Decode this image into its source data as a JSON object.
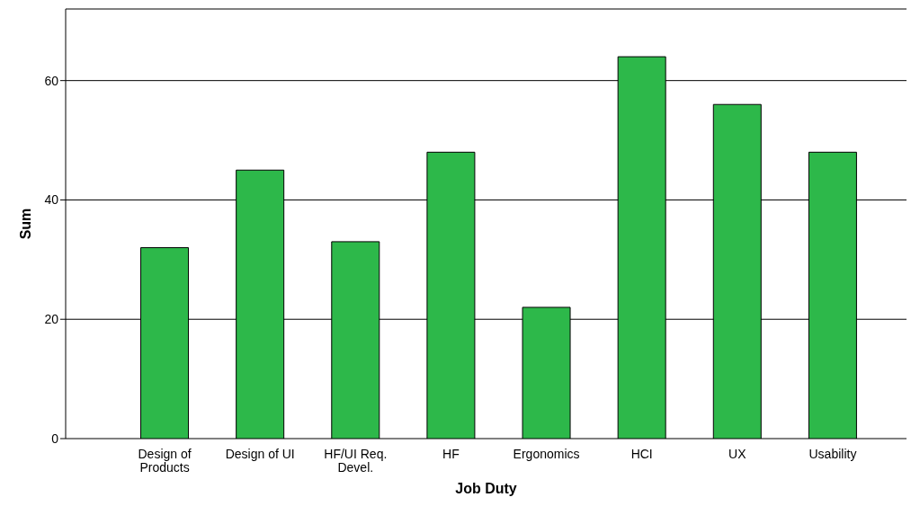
{
  "chart_data": {
    "type": "bar",
    "xlabel": "Job Duty",
    "ylabel": "Sum",
    "categories": [
      "Design of Products",
      "Design of UI",
      "HF/UI Req. Devel.",
      "HF",
      "Ergonomics",
      "HCI",
      "UX",
      "Usability"
    ],
    "values": [
      32,
      45,
      33,
      48,
      22,
      64,
      56,
      48
    ],
    "color": "#2db84a",
    "ylim": [
      0,
      72
    ],
    "yticks": [
      0,
      20,
      40,
      60
    ],
    "grid": "y"
  }
}
